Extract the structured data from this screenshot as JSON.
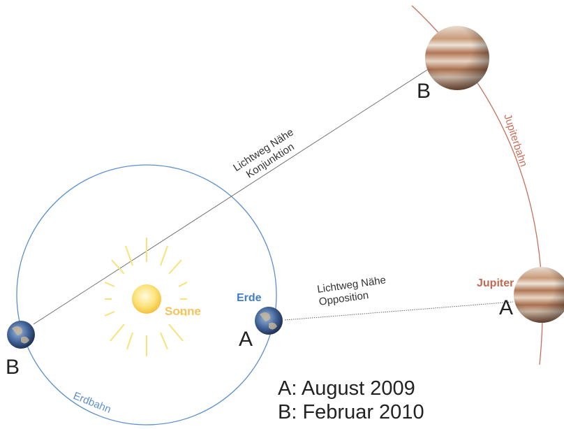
{
  "diagram": {
    "path_conjunction": [
      "Lichtweg Nähe",
      "Konjunktion"
    ],
    "path_opposition": [
      "Lichtweg Nähe",
      "Opposition"
    ],
    "jupiter_orbit": "Jupiterbahn",
    "earth_orbit": "Erdbahn",
    "sun": "Sonne",
    "earth": "Erde",
    "jupiter": "Jupiter",
    "earth_a": "A",
    "earth_b": "B",
    "jupiter_a": "A",
    "jupiter_b": "B",
    "legend": [
      "A: August 2009",
      "B: Februar 2010"
    ]
  }
}
